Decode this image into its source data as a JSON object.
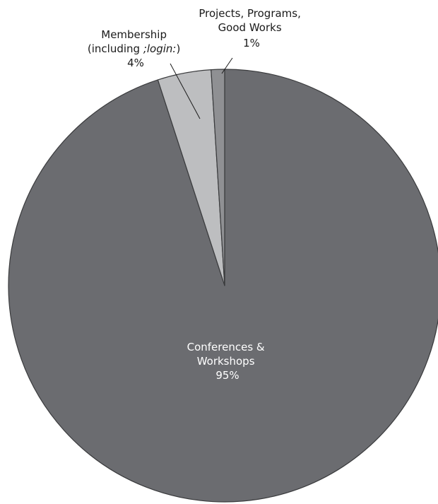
{
  "chart_data": {
    "type": "pie",
    "title": "",
    "slices": [
      {
        "label_lines": [
          "Conferences &",
          "Workshops"
        ],
        "value_label": "95%",
        "value": 95,
        "color": "#6b6c70"
      },
      {
        "label_lines": [
          "Membership",
          "(including ;login:)"
        ],
        "italic_term": ";login:",
        "value_label": "4%",
        "value": 4,
        "color": "#bdbec0"
      },
      {
        "label_lines": [
          "Projects, Programs,",
          "Good Works"
        ],
        "value_label": "1%",
        "value": 1,
        "color": "#8f9093"
      }
    ]
  }
}
